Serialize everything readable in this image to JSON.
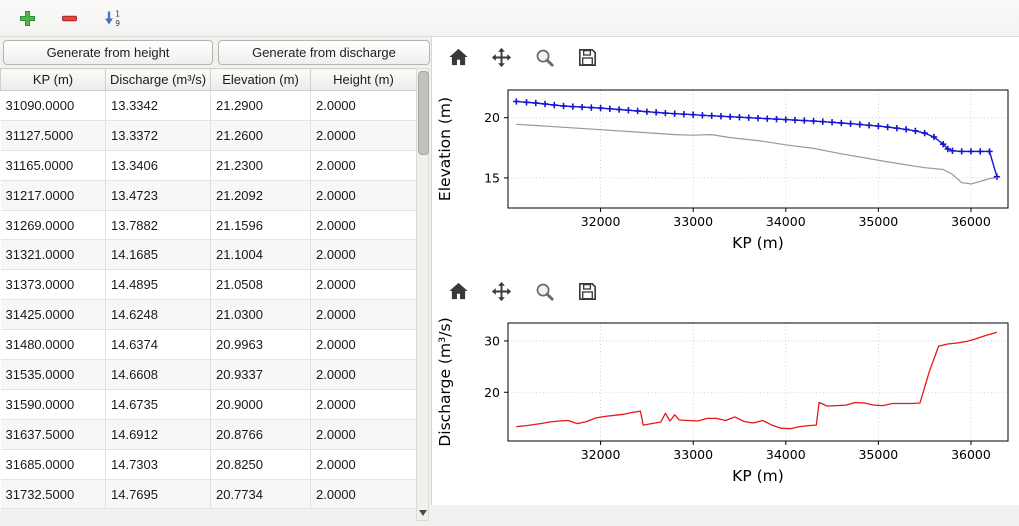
{
  "colors": {
    "window_bg": "#f2f1f0",
    "panel_bg": "#ffffff",
    "elevation_blue": "#1515d0",
    "ground_gray": "#999999",
    "discharge_red": "#e81818",
    "add_green": "#4cb64c",
    "remove_red": "#e04545",
    "sort_blue": "#4a72c4"
  },
  "main_toolbar": {
    "icons": [
      {
        "name": "plus-icon",
        "meaning": "add row"
      },
      {
        "name": "minus-icon",
        "meaning": "remove row"
      },
      {
        "name": "sort-ascending-icon",
        "meaning": "sort 1 to 9"
      }
    ]
  },
  "generate_buttons": {
    "from_height": "Generate from height",
    "from_discharge": "Generate from discharge"
  },
  "table": {
    "columns": [
      "KP (m)",
      "Discharge (m³/s)",
      "Elevation (m)",
      "Height (m)"
    ],
    "rows": [
      [
        "31090.0000",
        "13.3342",
        "21.2900",
        "2.0000"
      ],
      [
        "31127.5000",
        "13.3372",
        "21.2600",
        "2.0000"
      ],
      [
        "31165.0000",
        "13.3406",
        "21.2300",
        "2.0000"
      ],
      [
        "31217.0000",
        "13.4723",
        "21.2092",
        "2.0000"
      ],
      [
        "31269.0000",
        "13.7882",
        "21.1596",
        "2.0000"
      ],
      [
        "31321.0000",
        "14.1685",
        "21.1004",
        "2.0000"
      ],
      [
        "31373.0000",
        "14.4895",
        "21.0508",
        "2.0000"
      ],
      [
        "31425.0000",
        "14.6248",
        "21.0300",
        "2.0000"
      ],
      [
        "31480.0000",
        "14.6374",
        "20.9963",
        "2.0000"
      ],
      [
        "31535.0000",
        "14.6608",
        "20.9337",
        "2.0000"
      ],
      [
        "31590.0000",
        "14.6735",
        "20.9000",
        "2.0000"
      ],
      [
        "31637.5000",
        "14.6912",
        "20.8766",
        "2.0000"
      ],
      [
        "31685.0000",
        "14.7303",
        "20.8250",
        "2.0000"
      ],
      [
        "31732.5000",
        "14.7695",
        "20.7734",
        "2.0000"
      ]
    ]
  },
  "nav_toolbar": {
    "icons": [
      "home-icon",
      "pan-icon",
      "zoom-icon",
      "save-icon"
    ]
  },
  "chart_data": [
    {
      "type": "line",
      "title": "",
      "xlabel": "KP (m)",
      "ylabel": "Elevation (m)",
      "xlim": [
        31000,
        36400
      ],
      "ylim": [
        12.5,
        22.3
      ],
      "xticks": [
        32000,
        33000,
        34000,
        35000,
        36000
      ],
      "yticks": [
        15,
        20
      ],
      "grid": true,
      "legend": "none",
      "series": [
        {
          "name": "water-elevation",
          "color": "#1515d0",
          "marker": "+",
          "width": 1.4,
          "x": [
            31090,
            31200,
            31300,
            31400,
            31500,
            31600,
            31700,
            31800,
            31900,
            32000,
            32100,
            32200,
            32300,
            32400,
            32500,
            32600,
            32700,
            32800,
            32900,
            33000,
            33100,
            33200,
            33300,
            33400,
            33500,
            33600,
            33700,
            33800,
            33900,
            34000,
            34100,
            34200,
            34300,
            34400,
            34500,
            34600,
            34700,
            34800,
            34900,
            35000,
            35100,
            35200,
            35300,
            35400,
            35500,
            35600,
            35700,
            35750,
            35800,
            35900,
            36000,
            36100,
            36200,
            36280
          ],
          "y": [
            21.35,
            21.28,
            21.22,
            21.14,
            21.05,
            20.97,
            20.92,
            20.88,
            20.84,
            20.8,
            20.74,
            20.68,
            20.62,
            20.56,
            20.5,
            20.44,
            20.38,
            20.33,
            20.29,
            20.25,
            20.2,
            20.16,
            20.12,
            20.08,
            20.04,
            20.0,
            19.96,
            19.92,
            19.88,
            19.84,
            19.8,
            19.76,
            19.72,
            19.67,
            19.62,
            19.56,
            19.5,
            19.44,
            19.37,
            19.3,
            19.22,
            19.13,
            19.03,
            18.9,
            18.72,
            18.4,
            17.8,
            17.4,
            17.25,
            17.2,
            17.2,
            17.2,
            17.2,
            15.1
          ]
        },
        {
          "name": "ground-level",
          "color": "#999999",
          "marker": "none",
          "width": 1.2,
          "x": [
            31090,
            31300,
            31600,
            32000,
            32400,
            32800,
            33000,
            33200,
            33400,
            33700,
            34000,
            34300,
            34600,
            34900,
            35200,
            35500,
            35700,
            35800,
            35900,
            36000,
            36100,
            36200,
            36280
          ],
          "y": [
            19.45,
            19.35,
            19.2,
            19.0,
            18.8,
            18.6,
            18.55,
            18.6,
            18.35,
            18.1,
            17.75,
            17.45,
            17.0,
            16.6,
            16.2,
            15.85,
            15.7,
            15.3,
            14.6,
            14.5,
            14.7,
            14.95,
            15.0
          ]
        }
      ]
    },
    {
      "type": "line",
      "title": "",
      "xlabel": "KP (m)",
      "ylabel": "Discharge (m³/s)",
      "xlim": [
        31000,
        36400
      ],
      "ylim": [
        10.5,
        33.5
      ],
      "xticks": [
        32000,
        33000,
        34000,
        35000,
        36000
      ],
      "yticks": [
        20,
        30
      ],
      "grid": true,
      "legend": "none",
      "series": [
        {
          "name": "discharge",
          "color": "#e81818",
          "marker": "none",
          "width": 1.3,
          "x": [
            31090,
            31200,
            31350,
            31450,
            31550,
            31650,
            31750,
            31850,
            31950,
            32050,
            32150,
            32250,
            32350,
            32430,
            32460,
            32550,
            32650,
            32700,
            32750,
            32800,
            32850,
            32950,
            33050,
            33150,
            33250,
            33350,
            33450,
            33550,
            33650,
            33750,
            33850,
            33950,
            34050,
            34150,
            34250,
            34330,
            34360,
            34450,
            34550,
            34650,
            34750,
            34850,
            34950,
            35050,
            35150,
            35250,
            35350,
            35450,
            35550,
            35650,
            35750,
            35850,
            35950,
            36050,
            36150,
            36280
          ],
          "y": [
            13.3,
            13.5,
            13.9,
            14.2,
            14.4,
            14.5,
            13.9,
            14.3,
            15.0,
            15.3,
            15.5,
            15.7,
            16.1,
            16.3,
            13.6,
            13.9,
            14.2,
            15.9,
            14.4,
            15.6,
            14.6,
            14.5,
            14.4,
            14.9,
            14.9,
            14.5,
            15.2,
            14.3,
            14.0,
            14.5,
            13.6,
            13.0,
            12.9,
            13.3,
            13.5,
            13.6,
            18.0,
            17.3,
            17.4,
            17.5,
            18.0,
            17.9,
            17.5,
            17.4,
            17.8,
            17.8,
            17.8,
            17.9,
            24.0,
            29.0,
            29.4,
            29.6,
            29.9,
            30.4,
            31.0,
            31.7
          ]
        }
      ]
    }
  ]
}
